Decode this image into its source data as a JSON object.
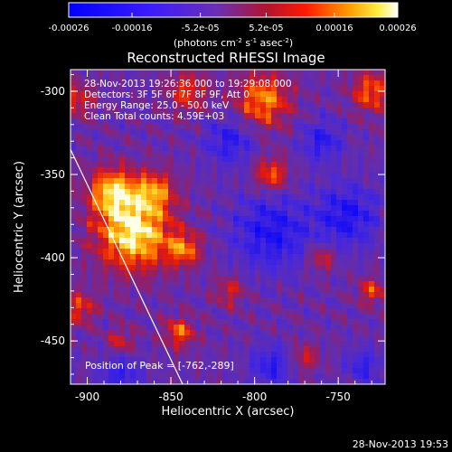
{
  "colorbar": {
    "tick_labels": [
      "-0.00026",
      "-0.00016",
      "-5.2e-05",
      "5.2e-05",
      "0.00016",
      "0.00026"
    ],
    "tick_values": [
      -0.00026,
      -0.00016,
      -5.2e-05,
      5.2e-05,
      0.00016,
      0.00026
    ],
    "range": [
      -0.00026,
      0.00026
    ],
    "units_label": "(photons cm",
    "units_sup1": "-2",
    "units_mid": " s",
    "units_sup2": "-1",
    "units_mid2": " asec",
    "units_sup3": "-2",
    "units_end": ")"
  },
  "chart_data": {
    "type": "heatmap",
    "title": "Reconstructed RHESSI Image",
    "xlabel": "Heliocentric X (arcsec)",
    "ylabel": "Heliocentric Y (arcsec)",
    "xlim": [
      -910,
      -722
    ],
    "ylim": [
      -476,
      -287
    ],
    "x_ticks": [
      -900,
      -850,
      -800,
      -750
    ],
    "x_tick_labels": [
      "-900",
      "-850",
      "-800",
      "-750"
    ],
    "y_ticks": [
      -300,
      -350,
      -400,
      -450
    ],
    "y_tick_labels": [
      "-300",
      "-350",
      "-400",
      "-450"
    ],
    "colormap": "blue-purple-red-yellow-white",
    "peak": [
      -762,
      -289
    ],
    "info_lines": [
      "28-Nov-2013 19:26:36.000 to 19:29:08.000",
      "Detectors: 3F 5F 6F 7F 8F 9F, Att 0",
      "Energy Range: 25.0 - 50.0 keV",
      "Clean    Total counts: 4.59E+03"
    ],
    "peak_label": "Position of Peak = [-762,-289]",
    "limb_line": [
      [
        -910,
        -335
      ],
      [
        -843,
        -476
      ]
    ]
  },
  "footer_timestamp": "28-Nov-2013 19:53"
}
